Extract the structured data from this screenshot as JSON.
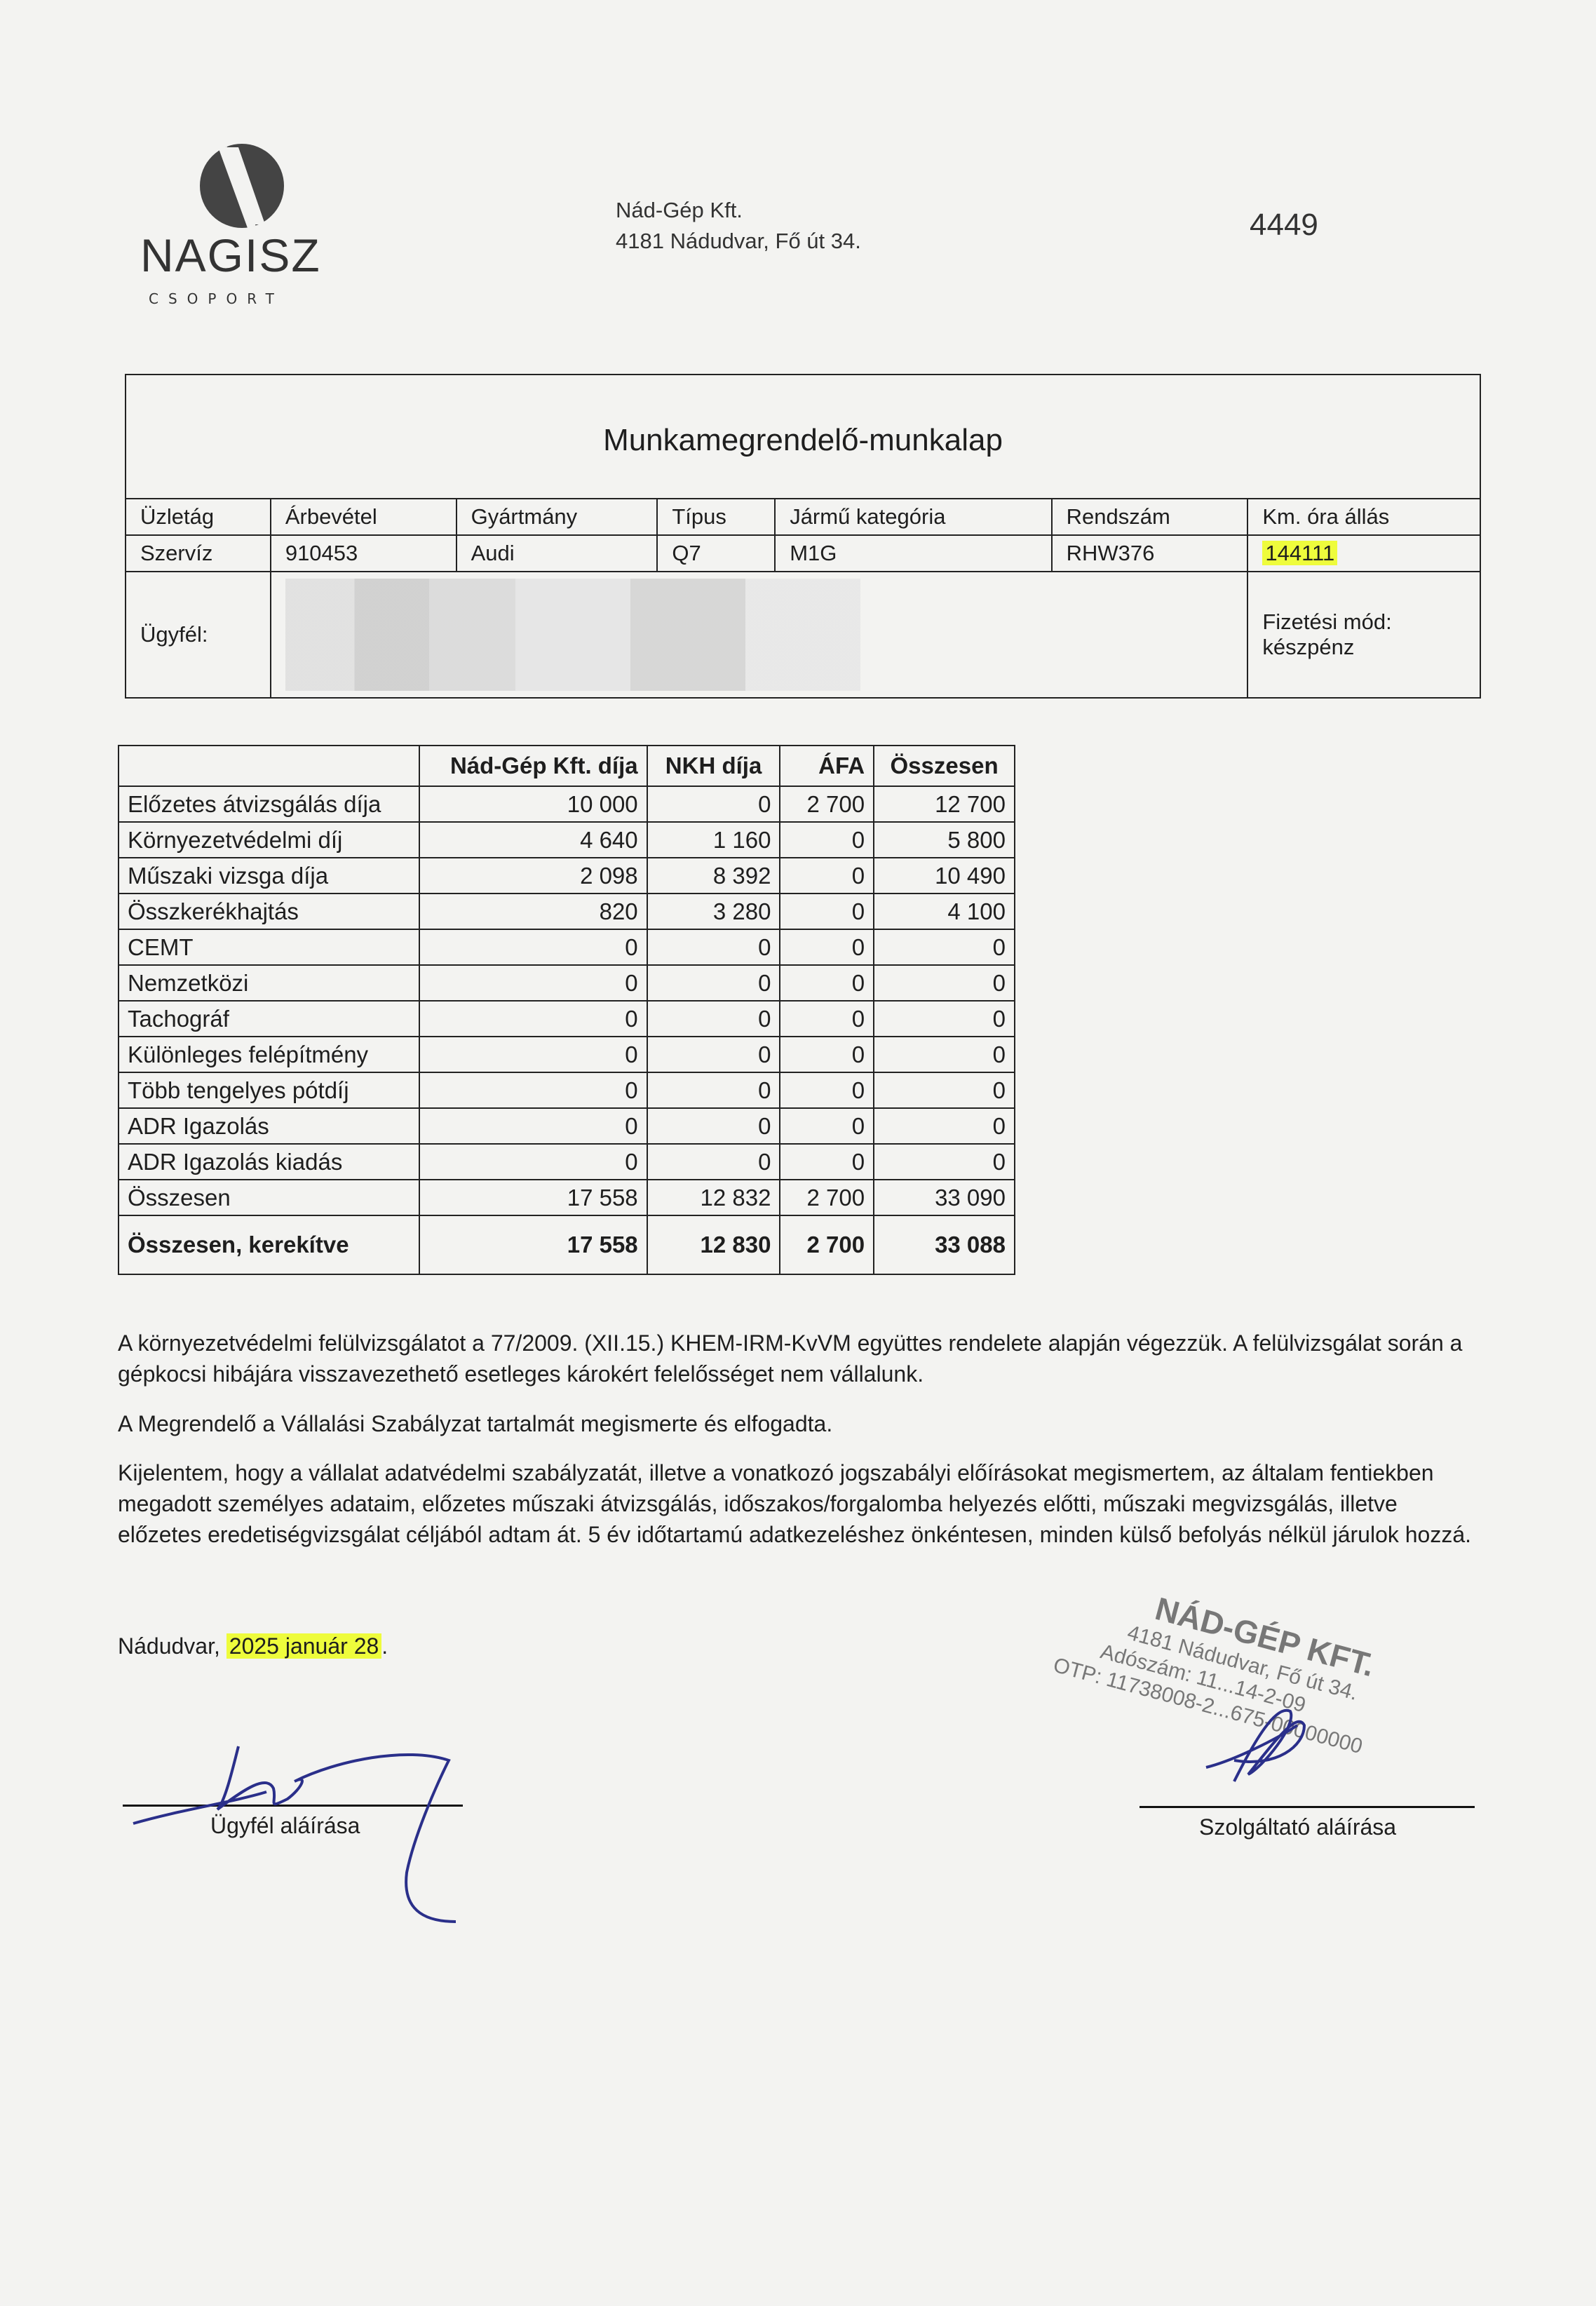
{
  "logo": {
    "brand": "NAGISZ",
    "sub": "CSOPORT"
  },
  "company": {
    "name": "Nád-Gép Kft.",
    "address": "4181 Nádudvar, Fő út 34."
  },
  "doc_number": "4449",
  "title": "Munkamegrendelő-munkalap",
  "vehicle": {
    "headers": [
      "Üzletág",
      "Árbevétel",
      "Gyártmány",
      "Típus",
      "Jármű kategória",
      "Rendszám",
      "Km. óra állás"
    ],
    "values": [
      "Szervíz",
      "910453",
      "Audi",
      "Q7",
      "M1G",
      "RHW376",
      "144111"
    ]
  },
  "client": {
    "label": "Ügyfél:",
    "payment_label": "Fizetési mód:",
    "payment_value": "készpénz"
  },
  "fees": {
    "headers": [
      "",
      "Nád-Gép Kft. díja",
      "NKH díja",
      "ÁFA",
      "Összesen"
    ],
    "rows": [
      [
        "Előzetes átvizsgálás díja",
        "10 000",
        "0",
        "2 700",
        "12 700"
      ],
      [
        "Környezetvédelmi díj",
        "4 640",
        "1 160",
        "0",
        "5 800"
      ],
      [
        "Műszaki vizsga díja",
        "2 098",
        "8 392",
        "0",
        "10 490"
      ],
      [
        "Összkerékhajtás",
        "820",
        "3 280",
        "0",
        "4 100"
      ],
      [
        "CEMT",
        "0",
        "0",
        "0",
        "0"
      ],
      [
        "Nemzetközi",
        "0",
        "0",
        "0",
        "0"
      ],
      [
        "Tachográf",
        "0",
        "0",
        "0",
        "0"
      ],
      [
        "Különleges felépítmény",
        "0",
        "0",
        "0",
        "0"
      ],
      [
        "Több tengelyes pótdíj",
        "0",
        "0",
        "0",
        "0"
      ],
      [
        "ADR Igazolás",
        "0",
        "0",
        "0",
        "0"
      ],
      [
        "ADR Igazolás kiadás",
        "0",
        "0",
        "0",
        "0"
      ],
      [
        "Összesen",
        "17 558",
        "12 832",
        "2 700",
        "33 090"
      ]
    ],
    "rounded": [
      "Összesen, kerekítve",
      "17 558",
      "12 830",
      "2 700",
      "33 088"
    ]
  },
  "paragraphs": [
    "A környezetvédelmi felülvizsgálatot a 77/2009. (XII.15.) KHEM-IRM-KvVM együttes rendelete alapján végezzük. A felülvizsgálat során a gépkocsi hibájára visszavezethető esetleges károkért felelősséget nem vállalunk.",
    "A Megrendelő a Vállalási Szabályzat tartalmát megismerte és elfogadta.",
    "Kijelentem, hogy a vállalat adatvédelmi szabályzatát, illetve a vonatkozó jogszabályi előírásokat megismertem, az általam fentiekben megadott személyes adataim, előzetes műszaki átvizsgálás, időszakos/forgalomba helyezés előtti, műszaki megvizsgálás, illetve előzetes eredetiségvizsgálat céljából adtam át. 5 év időtartamú adatkezeléshez önkéntesen, minden külső befolyás nélkül járulok hozzá."
  ],
  "date": {
    "place": "Nádudvar, ",
    "value": "2025 január 28",
    "suffix": "."
  },
  "signatures": {
    "client": "Ügyfél aláírása",
    "provider": "Szolgáltató aláírása"
  },
  "stamp": {
    "lines": [
      "NÁD-GÉP KFT.",
      "4181 Nádudvar, Fő út 34.",
      "Adószám: 11...14-2-09",
      "OTP: 11738008-2...675-00000000"
    ]
  },
  "colors": {
    "highlight": "#eefc3c",
    "ink": "#1e1e1e",
    "signature": "#2a2f8a"
  }
}
